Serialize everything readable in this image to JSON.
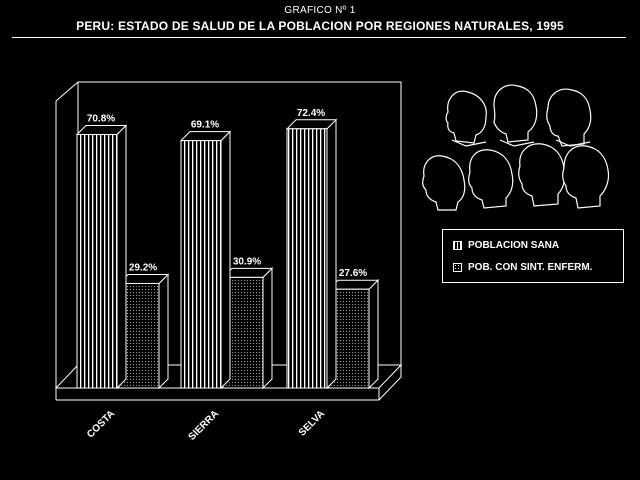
{
  "figure_label": "GRAFICO Nº 1",
  "title": "PERU: ESTADO DE SALUD DE LA POBLACION POR REGIONES NATURALES, 1995",
  "legend": {
    "healthy": "POBLACION SANA",
    "sick": "POB. CON SINT. ENFERM."
  },
  "chart_data": {
    "type": "bar",
    "title": "PERU: ESTADO DE SALUD DE LA POBLACION POR REGIONES NATURALES, 1995",
    "categories": [
      "COSTA",
      "SIERRA",
      "SELVA"
    ],
    "series": [
      {
        "name": "POBLACION SANA",
        "values": [
          70.8,
          69.1,
          72.4
        ],
        "labels": [
          "70.8%",
          "69.1%",
          "72.4%"
        ],
        "pattern": "vertical-stripes"
      },
      {
        "name": "POB. CON SINT. ENFERM.",
        "values": [
          29.2,
          30.9,
          27.6
        ],
        "labels": [
          "29.2%",
          "30.9%",
          "27.6%"
        ],
        "pattern": "dots"
      }
    ],
    "ylim": [
      0,
      100
    ],
    "grid": false,
    "legend_position": "right",
    "colors": {
      "background": "#000000",
      "foreground": "#ffffff"
    }
  }
}
